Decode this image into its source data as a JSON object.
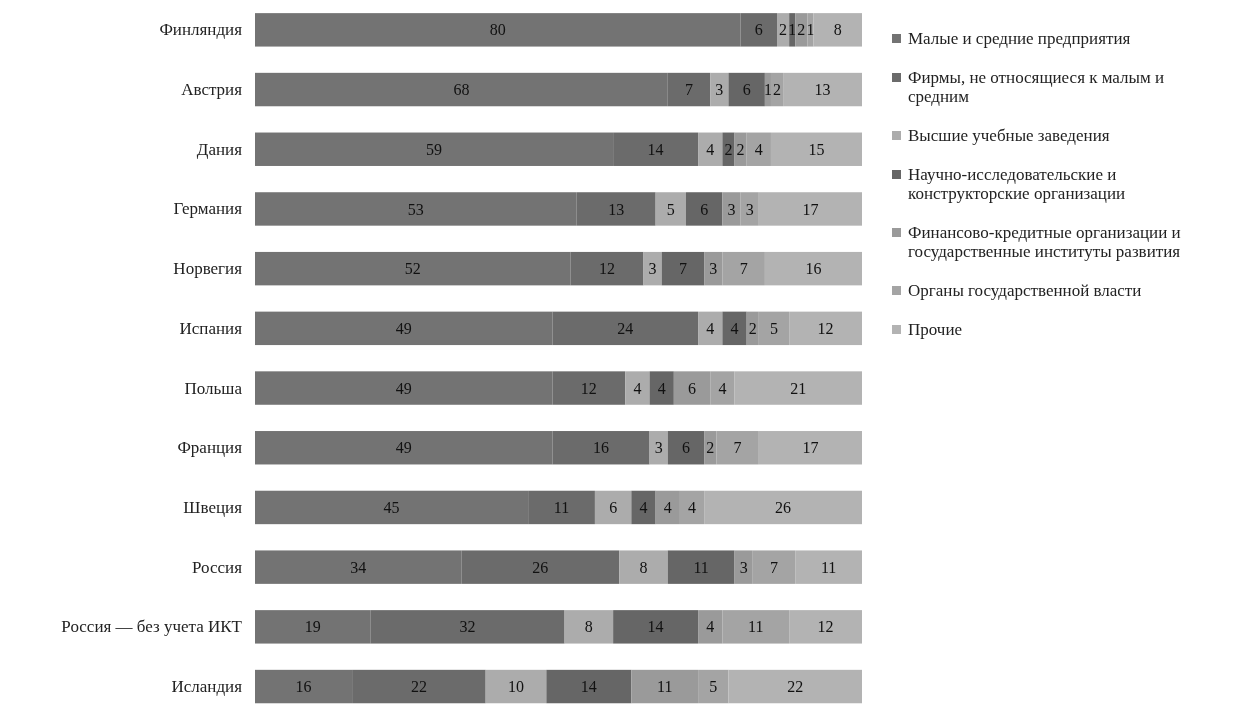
{
  "chart_data": {
    "type": "bar",
    "orientation": "horizontal",
    "stacked": true,
    "data_labels": true,
    "tick_labels": "y",
    "legend": "right",
    "xlim": [
      0,
      100
    ],
    "categories": [
      "Финляндия",
      "Австрия",
      "Дания",
      "Германия",
      "Норвегия",
      "Испания",
      "Польша",
      "Франция",
      "Швеция",
      "Россия",
      "Россия — без учета ИКТ",
      "Исландия"
    ],
    "series": [
      {
        "name": "Малые и средние предприятия",
        "color": "#737373",
        "values": [
          80,
          68,
          59,
          53,
          52,
          49,
          49,
          49,
          45,
          34,
          19,
          16
        ]
      },
      {
        "name": "Фирмы, не относящиеся к малым и средним",
        "color": "#6b6b6b",
        "values": [
          6,
          7,
          14,
          13,
          12,
          24,
          12,
          16,
          11,
          26,
          32,
          22
        ]
      },
      {
        "name": "Высшие учебные заведения",
        "color": "#acacac",
        "values": [
          2,
          3,
          4,
          5,
          3,
          4,
          4,
          3,
          6,
          8,
          8,
          10
        ]
      },
      {
        "name": "Научно-исследовательские и конструкторские организации",
        "color": "#666666",
        "values": [
          1,
          6,
          2,
          6,
          7,
          4,
          4,
          6,
          4,
          11,
          14,
          14
        ]
      },
      {
        "name": "Финансово-кредитные организации и государственные институты развития",
        "color": "#9a9a9a",
        "values": [
          2,
          1,
          2,
          3,
          3,
          2,
          6,
          2,
          4,
          3,
          4,
          11
        ]
      },
      {
        "name": "Органы государственной власти",
        "color": "#a4a4a4",
        "values": [
          1,
          2,
          4,
          3,
          7,
          5,
          4,
          7,
          4,
          7,
          11,
          5
        ]
      },
      {
        "name": "Прочие",
        "color": "#b3b3b3",
        "values": [
          8,
          13,
          15,
          17,
          16,
          12,
          21,
          17,
          26,
          11,
          12,
          22
        ]
      }
    ]
  }
}
